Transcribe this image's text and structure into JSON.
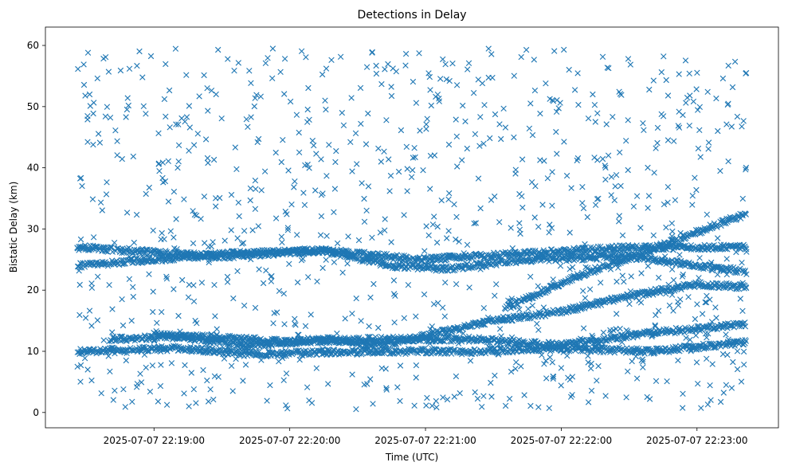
{
  "chart_data": {
    "type": "scatter",
    "title": "Detections in Delay",
    "xlabel": "Time (UTC)",
    "ylabel": "Bistatic Delay (km)",
    "marker": "x",
    "color": "#1f77b4",
    "grid": false,
    "xlim": [
      "2025-07-07 22:18:12",
      "2025-07-07 22:23:36"
    ],
    "ylim": [
      -2.5,
      63
    ],
    "x_ticks": [
      "2025-07-07 22:19:00",
      "2025-07-07 22:20:00",
      "2025-07-07 22:21:00",
      "2025-07-07 22:22:00",
      "2025-07-07 22:23:00"
    ],
    "y_ticks": [
      0,
      10,
      20,
      30,
      40,
      50,
      60
    ],
    "x_range": [
      "2025-07-07 22:18:26",
      "2025-07-07 22:23:22"
    ],
    "series": [
      {
        "kind": "track",
        "points": [
          [
            "2025-07-07 22:18:26",
            27.0
          ],
          [
            "2025-07-07 22:19:30",
            25.5
          ],
          [
            "2025-07-07 22:20:15",
            26.5
          ],
          [
            "2025-07-07 22:20:57",
            25.0
          ],
          [
            "2025-07-07 22:21:45",
            26.0
          ],
          [
            "2025-07-07 22:22:30",
            27.0
          ],
          [
            "2025-07-07 22:23:22",
            27.0
          ]
        ]
      },
      {
        "kind": "track",
        "points": [
          [
            "2025-07-07 22:18:26",
            24.0
          ],
          [
            "2025-07-07 22:19:00",
            25.0
          ],
          [
            "2025-07-07 22:19:35",
            26.0
          ],
          [
            "2025-07-07 22:20:15",
            26.5
          ],
          [
            "2025-07-07 22:20:45",
            24.0
          ],
          [
            "2025-07-07 22:21:10",
            23.5
          ],
          [
            "2025-07-07 22:21:45",
            25.0
          ],
          [
            "2025-07-07 22:22:30",
            25.5
          ],
          [
            "2025-07-07 22:23:22",
            23.0
          ]
        ]
      },
      {
        "kind": "track",
        "points": [
          [
            "2025-07-07 22:21:35",
            17.0
          ],
          [
            "2025-07-07 22:22:05",
            22.0
          ],
          [
            "2025-07-07 22:22:35",
            26.0
          ],
          [
            "2025-07-07 22:23:00",
            29.5
          ],
          [
            "2025-07-07 22:23:22",
            32.5
          ]
        ]
      },
      {
        "kind": "track",
        "points": [
          [
            "2025-07-07 22:19:00",
            13.0
          ],
          [
            "2025-07-07 22:19:40",
            11.0
          ],
          [
            "2025-07-07 22:20:15",
            12.0
          ],
          [
            "2025-07-07 22:20:40",
            11.0
          ],
          [
            "2025-07-07 22:21:00",
            12.5
          ],
          [
            "2025-07-07 22:21:30",
            15.0
          ],
          [
            "2025-07-07 22:22:00",
            16.5
          ],
          [
            "2025-07-07 22:22:30",
            19.0
          ],
          [
            "2025-07-07 22:23:00",
            21.0
          ],
          [
            "2025-07-07 22:23:22",
            20.5
          ]
        ]
      },
      {
        "kind": "track",
        "points": [
          [
            "2025-07-07 22:18:26",
            10.0
          ],
          [
            "2025-07-07 22:19:10",
            10.5
          ],
          [
            "2025-07-07 22:19:45",
            9.5
          ],
          [
            "2025-07-07 22:20:30",
            10.0
          ],
          [
            "2025-07-07 22:21:20",
            10.0
          ],
          [
            "2025-07-07 22:22:00",
            10.5
          ],
          [
            "2025-07-07 22:22:40",
            10.0
          ],
          [
            "2025-07-07 22:23:22",
            11.5
          ]
        ]
      },
      {
        "kind": "track",
        "points": [
          [
            "2025-07-07 22:18:40",
            12.0
          ],
          [
            "2025-07-07 22:19:20",
            12.5
          ],
          [
            "2025-07-07 22:20:00",
            11.5
          ],
          [
            "2025-07-07 22:20:40",
            12.0
          ],
          [
            "2025-07-07 22:21:20",
            12.0
          ],
          [
            "2025-07-07 22:22:00",
            11.0
          ],
          [
            "2025-07-07 22:22:40",
            13.0
          ],
          [
            "2025-07-07 22:23:22",
            14.5
          ]
        ]
      },
      {
        "kind": "scattered",
        "y_range": [
          0.5,
          59.5
        ],
        "point_count": 1000
      }
    ]
  }
}
